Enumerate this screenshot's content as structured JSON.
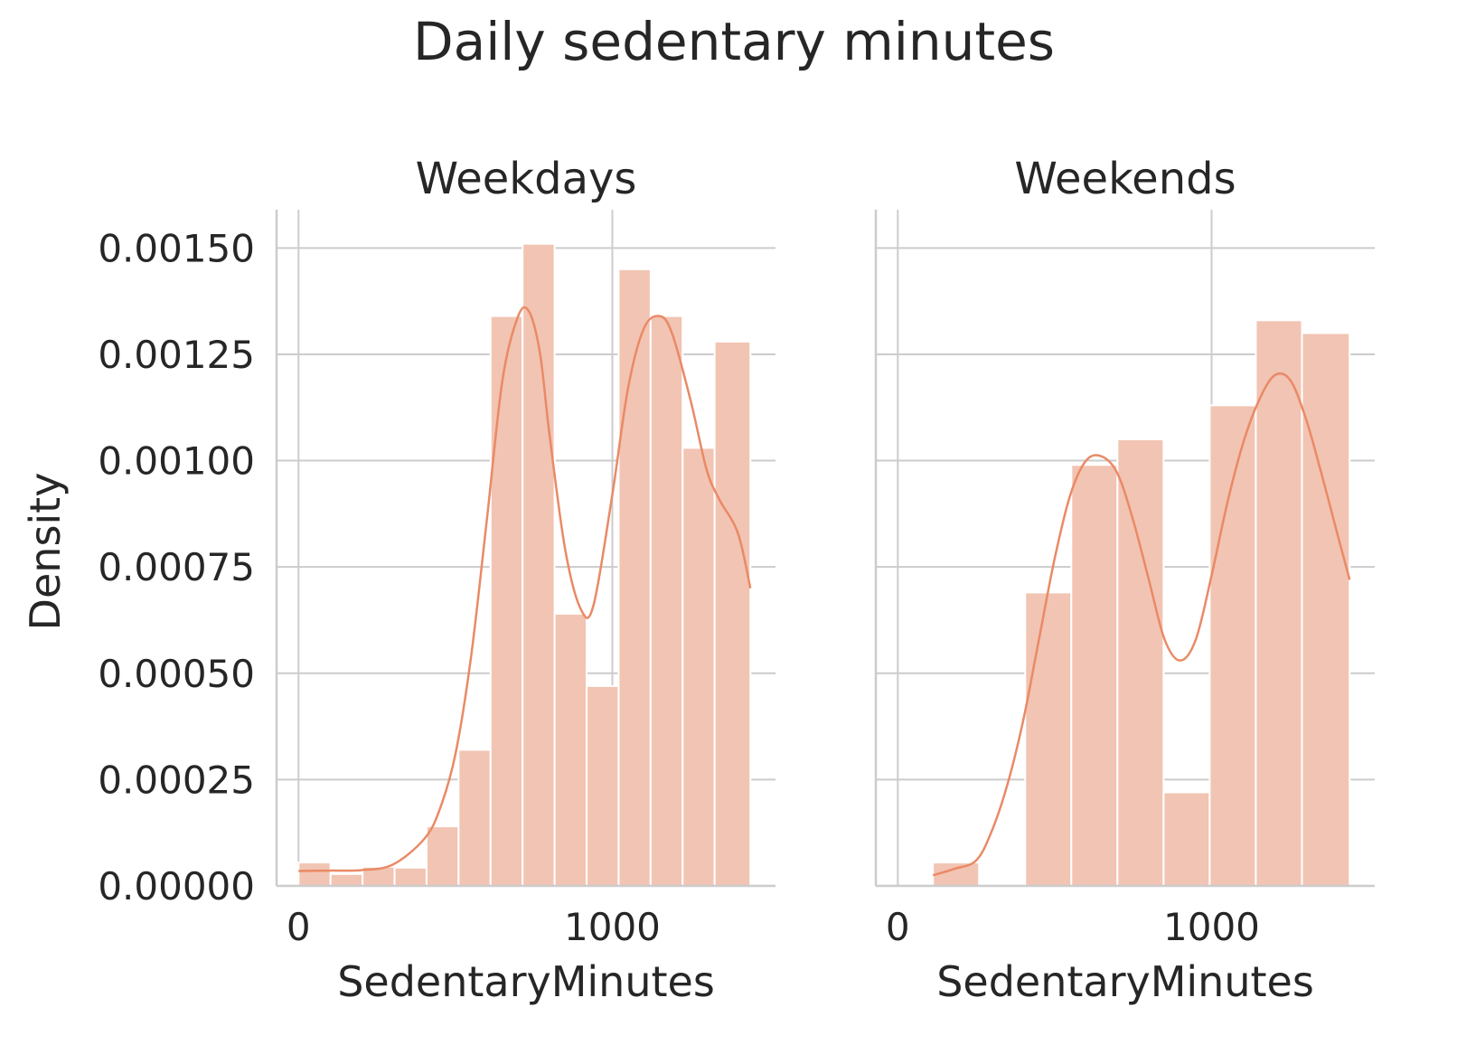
{
  "chart_data": {
    "title": "Daily sedentary minutes",
    "type": "bar",
    "style": {
      "bar_color": "#f2c4b3",
      "kde_color": "#e98a66",
      "grid_color": "#cccccc",
      "text_color": "#262626"
    },
    "shared_y": {
      "label": "Density",
      "ylim": [
        0,
        0.00159
      ],
      "ticks": [
        0,
        0.00025,
        0.0005,
        0.00075,
        0.001,
        0.00125,
        0.0015
      ],
      "tick_labels": [
        "0.00000",
        "0.00025",
        "0.00050",
        "0.00075",
        "0.00100",
        "0.00125",
        "0.00150"
      ]
    },
    "panels": [
      {
        "subtitle": "Weekdays",
        "xlabel": "SedentaryMinutes",
        "xlim": [
          -70,
          1520
        ],
        "x_ticks": [
          0,
          1000
        ],
        "x_tick_labels": [
          "0",
          "1000"
        ],
        "grid": true,
        "bars": [
          {
            "x0": 0,
            "x1": 102,
            "density": 5.5e-05
          },
          {
            "x0": 102,
            "x1": 204,
            "density": 2.8e-05
          },
          {
            "x0": 204,
            "x1": 306,
            "density": 4.5e-05
          },
          {
            "x0": 306,
            "x1": 408,
            "density": 4.3e-05
          },
          {
            "x0": 408,
            "x1": 510,
            "density": 0.00014
          },
          {
            "x0": 510,
            "x1": 612,
            "density": 0.00032
          },
          {
            "x0": 612,
            "x1": 714,
            "density": 0.00134
          },
          {
            "x0": 714,
            "x1": 816,
            "density": 0.00151
          },
          {
            "x0": 816,
            "x1": 918,
            "density": 0.00064
          },
          {
            "x0": 918,
            "x1": 1020,
            "density": 0.00047
          },
          {
            "x0": 1020,
            "x1": 1122,
            "density": 0.00145
          },
          {
            "x0": 1122,
            "x1": 1224,
            "density": 0.00134
          },
          {
            "x0": 1224,
            "x1": 1326,
            "density": 0.00103
          },
          {
            "x0": 1326,
            "x1": 1440,
            "density": 0.00128
          }
        ],
        "kde": {
          "x": [
            0,
            100,
            200,
            300,
            400,
            450,
            500,
            550,
            600,
            650,
            700,
            735,
            770,
            800,
            850,
            900,
            940,
            1000,
            1050,
            1100,
            1150,
            1190,
            1250,
            1300,
            1340,
            1400,
            1440
          ],
          "y": [
            3.5e-05,
            3.6e-05,
            3.7e-05,
            5e-05,
            0.00011,
            0.00018,
            0.00031,
            0.00054,
            0.00086,
            0.00119,
            0.00134,
            0.00135,
            0.00125,
            0.00106,
            0.00079,
            0.00065,
            0.00066,
            0.00092,
            0.00117,
            0.00131,
            0.00134,
            0.0013,
            0.00114,
            0.00098,
            0.00091,
            0.00083,
            0.0007
          ]
        }
      },
      {
        "subtitle": "Weekends",
        "xlabel": "SedentaryMinutes",
        "xlim": [
          -70,
          1520
        ],
        "x_ticks": [
          0,
          1000
        ],
        "x_tick_labels": [
          "0",
          "1000"
        ],
        "grid": true,
        "bars": [
          {
            "x0": 112,
            "x1": 259,
            "density": 5.5e-05
          },
          {
            "x0": 259,
            "x1": 406,
            "density": 0
          },
          {
            "x0": 406,
            "x1": 553,
            "density": 0.00069
          },
          {
            "x0": 553,
            "x1": 700,
            "density": 0.00099
          },
          {
            "x0": 700,
            "x1": 847,
            "density": 0.00105
          },
          {
            "x0": 847,
            "x1": 994,
            "density": 0.00022
          },
          {
            "x0": 994,
            "x1": 1141,
            "density": 0.00113
          },
          {
            "x0": 1141,
            "x1": 1288,
            "density": 0.00133
          },
          {
            "x0": 1288,
            "x1": 1440,
            "density": 0.0013
          }
        ],
        "kde": {
          "x": [
            112,
            180,
            250,
            300,
            350,
            400,
            450,
            500,
            550,
            600,
            650,
            700,
            750,
            800,
            850,
            900,
            950,
            1000,
            1050,
            1100,
            1150,
            1200,
            1250,
            1300,
            1350,
            1400,
            1440
          ],
          "y": [
            2.5e-05,
            4e-05,
            6e-05,
            0.00013,
            0.00024,
            0.00039,
            0.00058,
            0.00077,
            0.00092,
            0.001,
            0.00101,
            0.00097,
            0.00086,
            0.00072,
            0.00058,
            0.00053,
            0.00058,
            0.00073,
            0.0009,
            0.00104,
            0.00114,
            0.0012,
            0.00119,
            0.0011,
            0.00097,
            0.00083,
            0.00072
          ]
        }
      }
    ]
  }
}
